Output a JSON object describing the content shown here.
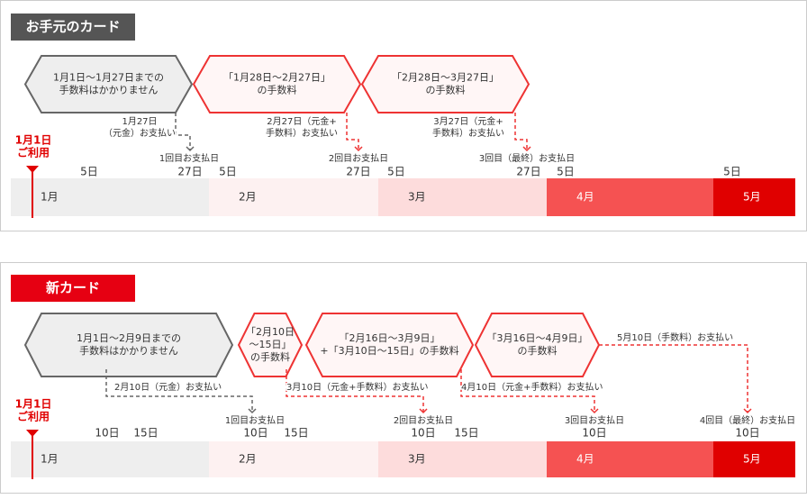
{
  "panels": [
    {
      "title": "お手元のカード",
      "use_label": [
        "1月1日",
        "ご利用"
      ],
      "periods": [
        {
          "lines": [
            "1月1日〜1月27日までの",
            "手数料はかかりません"
          ]
        },
        {
          "lines": [
            "「1月28日〜2月27日」",
            "の手数料"
          ]
        },
        {
          "lines": [
            "「2月28日〜3月27日」",
            "の手数料"
          ]
        }
      ],
      "notes": [
        {
          "lines": [
            "1月27日",
            "（元金）お支払い"
          ]
        },
        {
          "lines": [
            "2月27日（元金+",
            "手数料）お支払い"
          ]
        },
        {
          "lines": [
            "3月27日（元金+",
            "手数料）お支払い"
          ]
        }
      ],
      "payment_days": [
        "1回目お支払日",
        "2回目お支払日",
        "3回目（最終）お支払日"
      ],
      "days": [
        "5日",
        "27日",
        "5日",
        "27日",
        "5日",
        "27日",
        "5日",
        "5日"
      ],
      "months": [
        "1月",
        "2月",
        "3月",
        "4月",
        "5月"
      ]
    },
    {
      "title": "新カード",
      "use_label": [
        "1月1日",
        "ご利用"
      ],
      "periods": [
        {
          "lines": [
            "1月1日〜2月9日までの",
            "手数料はかかりません"
          ]
        },
        {
          "lines": [
            "「2月10日",
            "〜15日」",
            "の手数料"
          ]
        },
        {
          "lines": [
            "「2月16日〜3月9日」",
            "+「3月10日〜15日」の手数料"
          ]
        },
        {
          "lines": [
            "「3月16日〜4月9日」",
            "の手数料"
          ]
        }
      ],
      "notes": [
        {
          "lines": [
            "2月10日（元金）お支払い"
          ]
        },
        {
          "lines": [
            "3月10日（元金+手数料）お支払い"
          ]
        },
        {
          "lines": [
            "4月10日（元金+手数料）お支払い"
          ]
        },
        {
          "lines": [
            "5月10日（手数料）お支払い"
          ]
        }
      ],
      "payment_days": [
        "1回目お支払日",
        "2回目お支払日",
        "3回目お支払日",
        "4回目（最終）お支払日"
      ],
      "days": [
        "10日",
        "15日",
        "10日",
        "15日",
        "10日",
        "15日",
        "10日",
        "10日"
      ],
      "months": [
        "1月",
        "2月",
        "3月",
        "4月",
        "5月"
      ]
    }
  ]
}
